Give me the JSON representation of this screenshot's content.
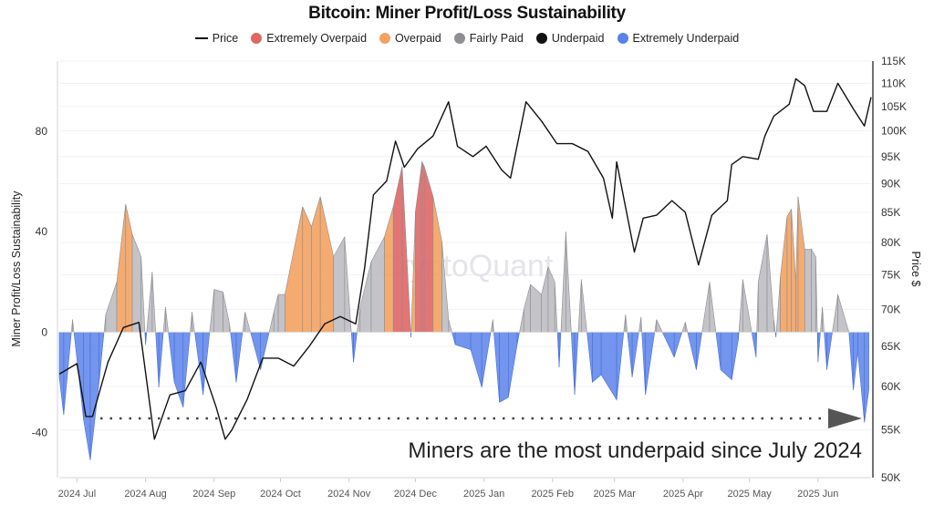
{
  "chart_data": {
    "type": "area",
    "title": "Bitcoin: Miner Profit/Loss Sustainability",
    "ylabel": "Miner Profit/Loss Sustainability",
    "y2label": "Price $",
    "watermark": "CryptoQuant",
    "annotation": "Miners are the most underpaid since July 2024",
    "xlim": [
      "2024-06-23",
      "2025-06-25"
    ],
    "ylim": [
      -58,
      108
    ],
    "y2lim": [
      50000,
      115000
    ],
    "y2scale": "log",
    "yticks": [
      -40,
      0,
      40,
      80
    ],
    "y2ticks": [
      "50K",
      "55K",
      "60K",
      "65K",
      "70K",
      "75K",
      "80K",
      "85K",
      "90K",
      "95K",
      "100K",
      "105K",
      "110K",
      "115K"
    ],
    "y2tick_values": [
      50000,
      55000,
      60000,
      65000,
      70000,
      75000,
      80000,
      85000,
      90000,
      95000,
      100000,
      105000,
      110000,
      115000
    ],
    "xticks": [
      "2024 Jul",
      "2024 Aug",
      "2024 Sep",
      "2024 Oct",
      "2024 Nov",
      "2024 Dec",
      "2025 Jan",
      "2025 Feb",
      "2025 Mar",
      "2025 Apr",
      "2025 May",
      "2025 Jun"
    ],
    "xtick_dates": [
      "2024-07-01",
      "2024-08-01",
      "2024-09-01",
      "2024-10-01",
      "2024-11-01",
      "2024-12-01",
      "2025-01-01",
      "2025-02-01",
      "2025-03-01",
      "2025-04-01",
      "2025-05-01",
      "2025-06-01"
    ],
    "legend_position": "top",
    "legend": [
      {
        "name": "Price",
        "color": "#111111",
        "shape": "line"
      },
      {
        "name": "Extremely Overpaid",
        "color": "#e06666",
        "shape": "dot"
      },
      {
        "name": "Overpaid",
        "color": "#f4a261",
        "shape": "dot"
      },
      {
        "name": "Fairly Paid",
        "color": "#8e8e93",
        "shape": "dot"
      },
      {
        "name": "Underpaid",
        "color": "#111111",
        "shape": "dot"
      },
      {
        "name": "Extremely Underpaid",
        "color": "#5b82ea",
        "shape": "dot"
      }
    ],
    "price": {
      "name": "Price",
      "x": [
        "2024-06-23",
        "2024-07-01",
        "2024-07-05",
        "2024-07-08",
        "2024-07-15",
        "2024-07-22",
        "2024-07-29",
        "2024-08-05",
        "2024-08-12",
        "2024-08-19",
        "2024-08-26",
        "2024-09-02",
        "2024-09-06",
        "2024-09-09",
        "2024-09-16",
        "2024-09-23",
        "2024-09-30",
        "2024-10-07",
        "2024-10-14",
        "2024-10-21",
        "2024-10-28",
        "2024-11-04",
        "2024-11-08",
        "2024-11-12",
        "2024-11-18",
        "2024-11-22",
        "2024-11-26",
        "2024-12-02",
        "2024-12-09",
        "2024-12-16",
        "2024-12-20",
        "2024-12-27",
        "2025-01-02",
        "2025-01-09",
        "2025-01-13",
        "2025-01-20",
        "2025-01-27",
        "2025-02-03",
        "2025-02-10",
        "2025-02-17",
        "2025-02-24",
        "2025-02-28",
        "2025-03-02",
        "2025-03-10",
        "2025-03-14",
        "2025-03-20",
        "2025-03-27",
        "2025-04-02",
        "2025-04-08",
        "2025-04-14",
        "2025-04-21",
        "2025-04-23",
        "2025-04-28",
        "2025-05-05",
        "2025-05-08",
        "2025-05-12",
        "2025-05-19",
        "2025-05-22",
        "2025-05-26",
        "2025-05-30",
        "2025-06-05",
        "2025-06-10",
        "2025-06-17",
        "2025-06-22",
        "2025-06-25"
      ],
      "y": [
        61500,
        62800,
        56500,
        56500,
        63000,
        67500,
        68200,
        54000,
        59000,
        59500,
        63000,
        57500,
        54000,
        55000,
        58500,
        63500,
        63500,
        62500,
        65000,
        68000,
        69000,
        68000,
        76000,
        88000,
        90500,
        98000,
        93000,
        96500,
        99000,
        106000,
        97000,
        95000,
        97000,
        92500,
        91000,
        106000,
        102000,
        97500,
        97500,
        96000,
        91000,
        84000,
        94000,
        78500,
        84000,
        84500,
        87000,
        85000,
        76500,
        84500,
        87000,
        93500,
        95000,
        94500,
        99000,
        103000,
        105500,
        111000,
        109500,
        104000,
        104000,
        110000,
        104500,
        101000,
        107000
      ]
    },
    "indicator": {
      "x": [
        "2024-06-23",
        "2024-06-25",
        "2024-06-29",
        "2024-07-04",
        "2024-07-07",
        "2024-07-11",
        "2024-07-14",
        "2024-07-19",
        "2024-07-23",
        "2024-07-26",
        "2024-07-30",
        "2024-08-01",
        "2024-08-04",
        "2024-08-07",
        "2024-08-10",
        "2024-08-14",
        "2024-08-18",
        "2024-08-22",
        "2024-08-27",
        "2024-09-01",
        "2024-09-05",
        "2024-09-08",
        "2024-09-11",
        "2024-09-15",
        "2024-09-22",
        "2024-09-28",
        "2024-09-30",
        "2024-10-03",
        "2024-10-11",
        "2024-10-15",
        "2024-10-19",
        "2024-10-25",
        "2024-10-30",
        "2024-11-03",
        "2024-11-06",
        "2024-11-11",
        "2024-11-17",
        "2024-11-21",
        "2024-11-25",
        "2024-11-29",
        "2024-12-01",
        "2024-12-04",
        "2024-12-05",
        "2024-12-09",
        "2024-12-13",
        "2024-12-16",
        "2024-12-19",
        "2024-12-26",
        "2024-12-31",
        "2025-01-05",
        "2025-01-08",
        "2025-01-12",
        "2025-01-16",
        "2025-01-19",
        "2025-01-22",
        "2025-01-27",
        "2025-01-30",
        "2025-02-02",
        "2025-02-04",
        "2025-02-07",
        "2025-02-11",
        "2025-02-14",
        "2025-02-19",
        "2025-02-23",
        "2025-03-02",
        "2025-03-06",
        "2025-03-09",
        "2025-03-13",
        "2025-03-15",
        "2025-03-20",
        "2025-03-28",
        "2025-04-02",
        "2025-04-07",
        "2025-04-13",
        "2025-04-18",
        "2025-04-23",
        "2025-04-26",
        "2025-04-28",
        "2025-05-04",
        "2025-05-05",
        "2025-05-09",
        "2025-05-12",
        "2025-05-13",
        "2025-05-15",
        "2025-05-18",
        "2025-05-20",
        "2025-05-22",
        "2025-05-23",
        "2025-05-26",
        "2025-05-29",
        "2025-05-31",
        "2025-06-01",
        "2025-06-03",
        "2025-06-05",
        "2025-06-10",
        "2025-06-15",
        "2025-06-17",
        "2025-06-19",
        "2025-06-22",
        "2025-06-24"
      ],
      "y": [
        -18,
        -33,
        5,
        -35,
        -51,
        -20,
        7,
        20,
        51,
        39,
        30,
        -5,
        24,
        -22,
        10,
        -20,
        -30,
        8,
        -25,
        17,
        16,
        3,
        -20,
        8,
        -15,
        8,
        15,
        15,
        50,
        42,
        54,
        30,
        38,
        -12,
        10,
        28,
        38,
        50,
        66,
        -2,
        48,
        68,
        66,
        54,
        36,
        5,
        -5,
        -7,
        -22,
        5,
        -28,
        -26,
        -5,
        9,
        19,
        15,
        26,
        20,
        -14,
        40,
        -25,
        21,
        -20,
        -17,
        -27,
        7,
        -18,
        6,
        -25,
        5,
        -10,
        4,
        -15,
        20,
        -15,
        -19,
        -3,
        21,
        -10,
        20,
        39,
        5,
        -2,
        22,
        46,
        49,
        20,
        54,
        33,
        33,
        30,
        -12,
        10,
        -15,
        15,
        0,
        -23,
        -8,
        -36,
        -23
      ]
    }
  }
}
